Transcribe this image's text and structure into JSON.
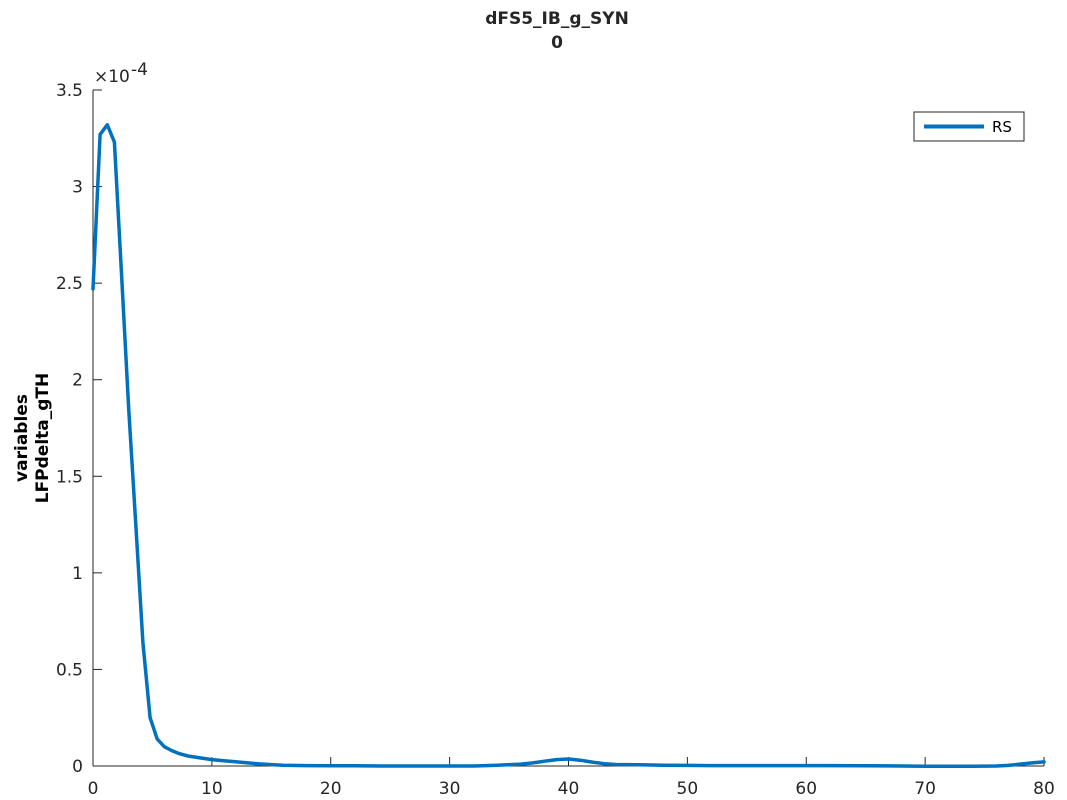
{
  "chart_data": {
    "type": "line",
    "title": "dFS5_IB_g_SYN",
    "subtitle": "0",
    "ylabel_line1": "variables",
    "ylabel_line2": "LFPdelta_gTH",
    "xlabel": "",
    "y_exponent_base": "×10",
    "y_exponent_power": "-4",
    "xlim": [
      0,
      80
    ],
    "ylim": [
      0,
      3.5
    ],
    "xticks": [
      "0",
      "10",
      "20",
      "30",
      "40",
      "50",
      "60",
      "70",
      "80"
    ],
    "yticks": [
      "0",
      "0.5",
      "1",
      "1.5",
      "2",
      "2.5",
      "3",
      "3.5"
    ],
    "xtick_values": [
      0,
      10,
      20,
      30,
      40,
      50,
      60,
      70,
      80
    ],
    "ytick_values": [
      0,
      0.5,
      1,
      1.5,
      2,
      2.5,
      3,
      3.5
    ],
    "legend_position": "top-right",
    "grid": false,
    "series": [
      {
        "name": "RS",
        "color": "#0072BD",
        "x": [
          0,
          0.6,
          1.2,
          1.8,
          2.4,
          3.0,
          3.6,
          4.2,
          4.8,
          5.4,
          6.0,
          6.6,
          7.2,
          8.0,
          9.0,
          10.0,
          11.0,
          12.0,
          13.0,
          14.0,
          15.0,
          16.0,
          18.0,
          20.0,
          22.0,
          25.0,
          28.0,
          30.0,
          32.0,
          34.0,
          36.0,
          37.0,
          38.0,
          39.0,
          40.0,
          41.0,
          42.0,
          43.0,
          44.0,
          46.0,
          48.0,
          50.0,
          52.0,
          55.0,
          58.0,
          60.0,
          62.0,
          65.0,
          68.0,
          70.0,
          72.0,
          74.0,
          76.0,
          77.0,
          78.0,
          79.0,
          80.0
        ],
        "y": [
          2.47,
          3.27,
          3.32,
          3.23,
          2.55,
          1.85,
          1.25,
          0.64,
          0.25,
          0.14,
          0.1,
          0.08,
          0.065,
          0.052,
          0.042,
          0.033,
          0.027,
          0.022,
          0.016,
          0.011,
          0.007,
          0.004,
          0.002,
          0.001,
          0.001,
          0.0,
          0.0,
          0.0,
          0.0,
          0.004,
          0.01,
          0.016,
          0.025,
          0.033,
          0.036,
          0.03,
          0.02,
          0.012,
          0.008,
          0.006,
          0.004,
          0.003,
          0.002,
          0.002,
          0.002,
          0.002,
          0.002,
          0.001,
          0.0,
          -0.001,
          -0.001,
          -0.001,
          0.0,
          0.003,
          0.01,
          0.016,
          0.021
        ]
      }
    ]
  }
}
